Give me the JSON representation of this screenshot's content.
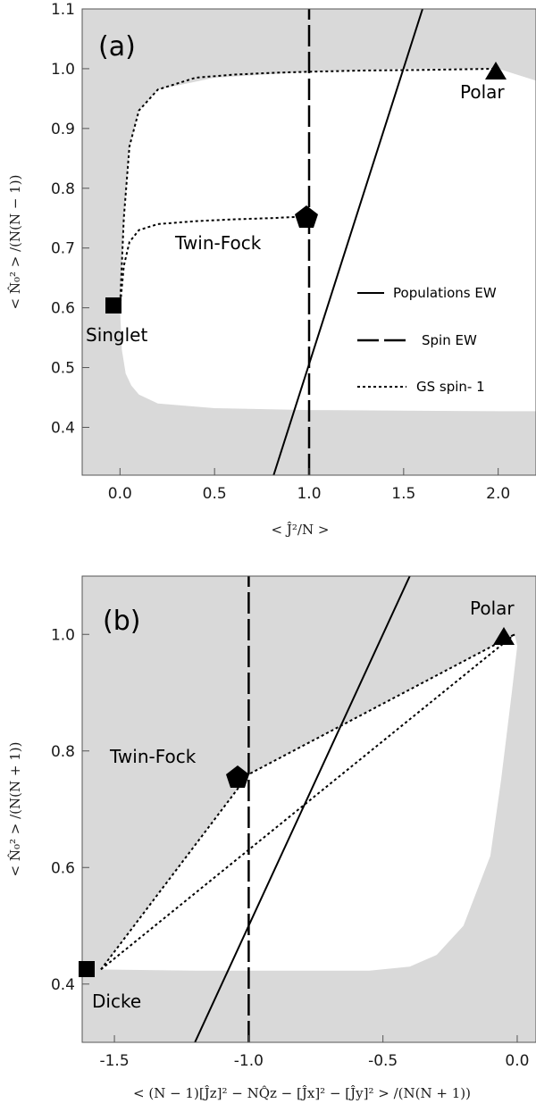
{
  "chart_data": [
    {
      "type": "line",
      "panel_label": "(a)",
      "xlabel": "< Ĵ²/N >",
      "ylabel": "< N̂₀² > /(N(N − 1))",
      "xlim": [
        -0.2,
        2.2
      ],
      "ylim": [
        0.32,
        1.1
      ],
      "xticks": [
        0.0,
        0.5,
        1.0,
        1.5,
        2.0
      ],
      "xtick_labels": [
        "0.0",
        "0.5",
        "1.0",
        "1.5",
        "2.0"
      ],
      "yticks": [
        0.4,
        0.5,
        0.6,
        0.7,
        0.8,
        0.9,
        1.0,
        1.1
      ],
      "ytick_labels": [
        "0.4",
        "0.5",
        "0.6",
        "0.7",
        "0.8",
        "0.9",
        "1.0",
        "1.1"
      ],
      "background_color": "#d9d9d9",
      "allowed_region": {
        "upper": [
          [
            0.0,
            0.6
          ],
          [
            0.02,
            0.75
          ],
          [
            0.05,
            0.87
          ],
          [
            0.1,
            0.93
          ],
          [
            0.2,
            0.965
          ],
          [
            0.5,
            0.985
          ],
          [
            1.0,
            0.995
          ],
          [
            1.5,
            1.0
          ],
          [
            2.0,
            1.0
          ],
          [
            2.1,
            0.99
          ],
          [
            2.2,
            0.98
          ]
        ],
        "lower": [
          [
            0.0,
            0.6
          ],
          [
            0.01,
            0.53
          ],
          [
            0.03,
            0.49
          ],
          [
            0.06,
            0.47
          ],
          [
            0.1,
            0.455
          ],
          [
            0.2,
            0.44
          ],
          [
            0.5,
            0.432
          ],
          [
            1.0,
            0.429
          ],
          [
            1.5,
            0.428
          ],
          [
            2.0,
            0.427
          ],
          [
            2.2,
            0.427
          ]
        ]
      },
      "series": [
        {
          "name": "Populations EW",
          "style": "solid",
          "x": [
            0.8125,
            1.6
          ],
          "y": [
            0.32,
            1.1
          ]
        },
        {
          "name": "Spin EW",
          "style": "dashed",
          "x": [
            1.0,
            1.0
          ],
          "y": [
            0.32,
            1.1
          ]
        },
        {
          "name": "GS spin- 1",
          "style": "dotted",
          "x": [
            0.0,
            0.02,
            0.05,
            0.1,
            0.2,
            0.4,
            0.6,
            0.8,
            1.0,
            1.3,
            1.6,
            1.8,
            2.0
          ],
          "y": [
            0.6,
            0.75,
            0.87,
            0.93,
            0.965,
            0.985,
            0.99,
            0.993,
            0.995,
            0.997,
            0.998,
            0.999,
            1.0
          ]
        },
        {
          "name": "",
          "style": "dotted",
          "x": [
            0.0,
            0.02,
            0.05,
            0.1,
            0.2,
            0.4,
            0.6,
            0.8,
            1.0
          ],
          "y": [
            0.6,
            0.67,
            0.71,
            0.73,
            0.74,
            0.745,
            0.748,
            0.75,
            0.753
          ]
        }
      ],
      "points": [
        {
          "label": "Singlet",
          "marker": "square",
          "x": 0.0,
          "y": 0.605
        },
        {
          "label": "Twin-Fock",
          "marker": "pentagon",
          "x": 1.0,
          "y": 0.755
        },
        {
          "label": "Polar",
          "marker": "triangle",
          "x": 1.98,
          "y": 1.0
        }
      ],
      "legend": {
        "placement": "right-middle",
        "entries": [
          "Populations EW",
          "Spin EW",
          "GS spin- 1"
        ]
      }
    },
    {
      "type": "line",
      "panel_label": "(b)",
      "xlabel": "< (N − 1)[Ĵz]² − NQ̂z − [Ĵx]² − [Ĵy]² > /(N(N + 1))",
      "ylabel": "< N̂₀² > /(N(N + 1))",
      "xlim": [
        -1.62,
        0.07
      ],
      "ylim": [
        0.3,
        1.1
      ],
      "xticks": [
        -1.5,
        -1.0,
        -0.5,
        0.0
      ],
      "xtick_labels": [
        "-1.5",
        "-1.0",
        "-0.5",
        "0.0"
      ],
      "yticks": [
        0.4,
        0.6,
        0.8,
        1.0
      ],
      "ytick_labels": [
        "0.4",
        "0.6",
        "0.8",
        "1.0"
      ],
      "background_color": "#d9d9d9",
      "allowed_region": {
        "polygon": [
          [
            -1.55,
            0.425
          ],
          [
            -1.0,
            0.76
          ],
          [
            -0.01,
            1.0
          ],
          [
            0.0,
            0.98
          ],
          [
            -0.02,
            0.9
          ],
          [
            -0.06,
            0.75
          ],
          [
            -0.1,
            0.62
          ],
          [
            -0.2,
            0.5
          ],
          [
            -0.3,
            0.45
          ],
          [
            -0.4,
            0.43
          ],
          [
            -0.55,
            0.423
          ],
          [
            -0.8,
            0.423
          ],
          [
            -1.2,
            0.423
          ],
          [
            -1.55,
            0.425
          ]
        ]
      },
      "series": [
        {
          "name": "",
          "style": "solid",
          "x": [
            -1.2,
            -0.8,
            -0.4
          ],
          "y": [
            0.3,
            0.7,
            1.1
          ]
        },
        {
          "name": "",
          "style": "dashed",
          "x": [
            -1.0,
            -1.0
          ],
          "y": [
            0.3,
            1.1
          ]
        },
        {
          "name": "",
          "style": "dotted",
          "x": [
            -1.55,
            -1.0,
            -0.01
          ],
          "y": [
            0.425,
            0.76,
            1.0
          ]
        },
        {
          "name": "",
          "style": "dotted",
          "x": [
            -1.55,
            -0.01
          ],
          "y": [
            0.425,
            1.0
          ]
        }
      ],
      "points": [
        {
          "label": "Dicke",
          "marker": "square",
          "x": -1.55,
          "y": 0.425
        },
        {
          "label": "Twin-Fock",
          "marker": "pentagon",
          "x": -1.0,
          "y": 0.76
        },
        {
          "label": "Polar",
          "marker": "triangle",
          "x": -0.01,
          "y": 1.0
        }
      ]
    }
  ]
}
